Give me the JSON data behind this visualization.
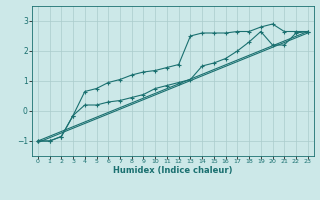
{
  "title": "",
  "xlabel": "Humidex (Indice chaleur)",
  "ylabel": "",
  "bg_color": "#cce8e8",
  "grid_color": "#aacccc",
  "line_color": "#1a7070",
  "xlim": [
    -0.5,
    23.5
  ],
  "ylim": [
    -1.5,
    3.5
  ],
  "xticks": [
    0,
    1,
    2,
    3,
    4,
    5,
    6,
    7,
    8,
    9,
    10,
    11,
    12,
    13,
    14,
    15,
    16,
    17,
    18,
    19,
    20,
    21,
    22,
    23
  ],
  "yticks": [
    -1,
    0,
    1,
    2,
    3
  ],
  "line1_x": [
    0,
    1,
    2,
    3,
    4,
    5,
    6,
    7,
    8,
    9,
    10,
    11,
    12,
    13,
    14,
    15,
    16,
    17,
    18,
    19,
    20,
    21,
    22,
    23
  ],
  "line1_y": [
    -1.0,
    -1.0,
    -0.85,
    -0.15,
    0.65,
    0.75,
    0.95,
    1.05,
    1.2,
    1.3,
    1.35,
    1.45,
    1.55,
    2.5,
    2.6,
    2.6,
    2.6,
    2.65,
    2.65,
    2.8,
    2.9,
    2.65,
    2.65,
    2.65
  ],
  "line2_x": [
    0,
    1,
    2,
    3,
    4,
    5,
    6,
    7,
    8,
    9,
    10,
    11,
    12,
    13,
    14,
    15,
    16,
    17,
    18,
    19,
    20,
    21,
    22,
    23
  ],
  "line2_y": [
    -1.0,
    -1.0,
    -0.85,
    -0.15,
    0.2,
    0.2,
    0.3,
    0.35,
    0.45,
    0.55,
    0.75,
    0.85,
    0.95,
    1.05,
    1.5,
    1.6,
    1.75,
    2.0,
    2.3,
    2.65,
    2.2,
    2.2,
    2.6,
    2.65
  ],
  "line3_x": [
    0,
    23
  ],
  "line3_y": [
    -1.0,
    2.65
  ],
  "line4_x": [
    0,
    23
  ],
  "line4_y": [
    -1.05,
    2.6
  ]
}
